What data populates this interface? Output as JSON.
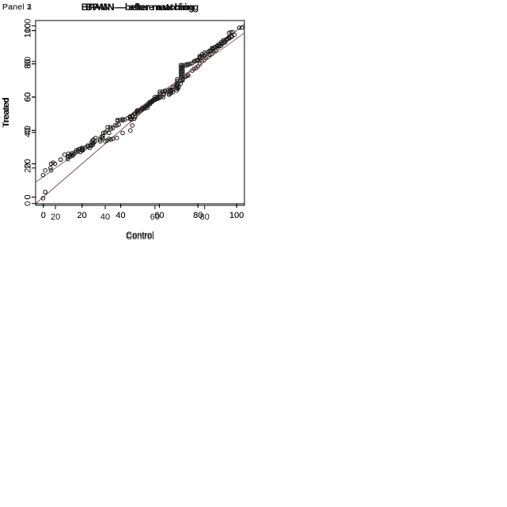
{
  "figure": {
    "background": "#ffffff",
    "point_color": "#1a1a1a",
    "reference_line_color": "#966058",
    "axis_color": "#000000",
    "text_color": "#111111"
  },
  "chart_data": [
    {
      "type": "scatter",
      "panel_label": "Panel 1",
      "title": "BPAIN — before matching",
      "xlabel": "Control",
      "ylabel": "Treated",
      "xlim": [
        -4,
        104
      ],
      "ylim": [
        -4,
        106
      ],
      "xticks": [
        0,
        20,
        40,
        60,
        80,
        100
      ],
      "yticks": [
        0,
        20,
        40,
        60,
        80,
        100
      ],
      "grid": false,
      "legend": null,
      "reference_line": "identity",
      "points": [
        [
          1,
          3
        ],
        [
          4,
          16
        ],
        [
          6,
          20
        ],
        [
          9,
          22.5
        ],
        [
          11,
          25.5
        ],
        [
          13,
          26
        ],
        [
          15,
          26.5
        ],
        [
          17,
          28
        ],
        [
          18,
          28.5
        ],
        [
          19,
          29
        ],
        [
          20,
          28.5
        ],
        [
          20,
          29.5
        ],
        [
          23,
          31
        ],
        [
          25,
          33
        ],
        [
          25.5,
          34
        ],
        [
          26,
          34.5
        ],
        [
          27,
          35.5
        ],
        [
          30,
          36
        ],
        [
          31,
          38.5
        ],
        [
          33,
          40
        ],
        [
          34,
          38.5
        ],
        [
          35,
          41
        ],
        [
          36,
          41.5
        ],
        [
          38,
          43
        ],
        [
          39,
          43.5
        ],
        [
          41,
          46
        ],
        [
          42,
          46.5
        ],
        [
          45,
          47
        ],
        [
          46,
          48.5
        ],
        [
          47,
          50
        ],
        [
          48,
          51
        ],
        [
          48.5,
          52
        ],
        [
          50,
          52.5
        ],
        [
          51,
          53
        ],
        [
          52,
          54
        ],
        [
          53,
          54.5
        ],
        [
          54,
          56
        ],
        [
          55,
          57
        ],
        [
          56,
          57.5
        ],
        [
          57,
          58.5
        ],
        [
          58,
          59
        ],
        [
          59,
          59.5
        ],
        [
          60,
          59.5
        ],
        [
          61,
          60.5
        ],
        [
          62,
          61.5
        ],
        [
          62.5,
          62
        ],
        [
          63,
          63.5
        ],
        [
          64,
          64
        ],
        [
          65,
          63.5
        ],
        [
          66,
          64
        ],
        [
          67,
          66
        ],
        [
          68,
          66.5
        ],
        [
          69,
          67
        ],
        [
          70,
          68.5
        ],
        [
          71,
          70
        ],
        [
          72,
          70.5
        ],
        [
          73,
          72
        ],
        [
          74,
          72.5
        ],
        [
          74.5,
          73.5
        ],
        [
          75,
          73
        ],
        [
          77,
          76
        ],
        [
          78,
          77
        ],
        [
          79,
          77.5
        ],
        [
          80,
          78.5
        ],
        [
          81,
          80
        ],
        [
          82,
          81.5
        ],
        [
          83,
          82
        ],
        [
          84,
          83.5
        ],
        [
          85,
          84
        ],
        [
          86,
          85.5
        ],
        [
          87,
          86
        ],
        [
          88,
          87.5
        ],
        [
          89,
          88
        ],
        [
          90,
          89.5
        ],
        [
          91,
          90.5
        ],
        [
          92,
          91
        ],
        [
          93,
          92.5
        ],
        [
          94,
          93
        ],
        [
          95,
          94.5
        ],
        [
          96,
          95.5
        ],
        [
          97,
          96.5
        ],
        [
          98,
          99
        ]
      ]
    },
    {
      "type": "scatter",
      "panel_label": "Panel 2",
      "title": "BPAIN — after matching",
      "xlabel": "Control",
      "ylabel": "Treated",
      "xlim": [
        -4,
        104
      ],
      "ylim": [
        -4,
        106
      ],
      "xticks": [
        0,
        20,
        40,
        60,
        80,
        100
      ],
      "yticks": [
        0,
        20,
        40,
        60,
        80,
        100
      ],
      "grid": false,
      "legend": null,
      "reference_line": "identity",
      "points": [
        [
          1,
          3
        ],
        [
          1,
          16
        ],
        [
          4,
          20
        ],
        [
          9,
          22.5
        ],
        [
          13,
          24.5
        ],
        [
          15,
          25.5
        ],
        [
          16,
          26
        ],
        [
          17,
          27
        ],
        [
          18,
          27.5
        ],
        [
          20,
          28
        ],
        [
          24,
          29.5
        ],
        [
          25,
          31
        ],
        [
          26,
          32.5
        ],
        [
          32,
          33.5
        ],
        [
          33,
          34
        ],
        [
          34,
          35
        ],
        [
          35,
          34.5
        ],
        [
          36,
          35
        ],
        [
          38,
          35.5
        ],
        [
          41,
          38.5
        ],
        [
          45,
          40
        ],
        [
          46,
          43
        ],
        [
          45.5,
          46.5
        ],
        [
          47,
          47
        ],
        [
          47.5,
          48
        ],
        [
          48,
          51
        ],
        [
          49,
          52
        ],
        [
          50,
          52.5
        ],
        [
          51,
          53.5
        ],
        [
          52,
          54
        ],
        [
          52.5,
          54.5
        ],
        [
          53,
          55
        ],
        [
          54,
          55.5
        ],
        [
          55,
          56
        ],
        [
          56,
          57
        ],
        [
          56.5,
          57.5
        ],
        [
          57,
          58
        ],
        [
          58,
          58.5
        ],
        [
          59,
          59
        ],
        [
          60,
          60
        ],
        [
          62,
          60
        ],
        [
          65,
          61.5
        ],
        [
          65.5,
          62
        ],
        [
          66,
          62.5
        ],
        [
          66,
          63.5
        ],
        [
          67,
          63
        ],
        [
          69,
          64
        ],
        [
          69.5,
          65
        ],
        [
          70,
          66
        ],
        [
          71,
          68
        ],
        [
          72,
          70
        ],
        [
          72,
          71
        ],
        [
          72,
          72
        ],
        [
          72,
          73
        ],
        [
          72,
          74
        ],
        [
          72,
          75
        ],
        [
          72,
          76
        ],
        [
          72,
          77
        ],
        [
          72,
          78
        ],
        [
          72,
          79
        ],
        [
          74,
          79
        ],
        [
          75,
          79.5
        ],
        [
          76,
          80
        ],
        [
          78,
          81.5
        ],
        [
          79,
          82
        ],
        [
          80,
          82.5
        ],
        [
          81,
          84
        ],
        [
          82,
          84.5
        ],
        [
          83,
          85
        ],
        [
          84,
          86
        ],
        [
          85,
          87
        ],
        [
          86,
          87.5
        ],
        [
          87,
          88
        ],
        [
          88,
          89
        ],
        [
          89,
          90
        ],
        [
          90,
          91
        ],
        [
          91,
          92
        ],
        [
          92,
          93
        ],
        [
          93,
          94
        ],
        [
          95,
          95
        ],
        [
          96,
          96
        ],
        [
          96,
          98.5
        ],
        [
          97,
          99
        ]
      ]
    },
    {
      "type": "scatter",
      "panel_label": "Panel 3",
      "title": "BPAIN — after matching",
      "xlabel": "Control",
      "ylabel": "Treated",
      "xlim": [
        12,
        96
      ],
      "ylim": [
        -1,
        103
      ],
      "xticks": [
        20,
        40,
        60,
        80
      ],
      "yticks": [
        0,
        20,
        40,
        60,
        80,
        100
      ],
      "grid": false,
      "legend": null,
      "reference_line": "identity",
      "points": [
        [
          15,
          3
        ],
        [
          15,
          16
        ],
        [
          18,
          20
        ],
        [
          19,
          23
        ],
        [
          25,
          25
        ],
        [
          25,
          26
        ],
        [
          26,
          26.5
        ],
        [
          26,
          27.5
        ],
        [
          27,
          27
        ],
        [
          30,
          29
        ],
        [
          31,
          30
        ],
        [
          31,
          31
        ],
        [
          32,
          31.5
        ],
        [
          33,
          32
        ],
        [
          34,
          32.5
        ],
        [
          35,
          33
        ],
        [
          35,
          34
        ],
        [
          36,
          35
        ],
        [
          38,
          35
        ],
        [
          38,
          36
        ],
        [
          39,
          37
        ],
        [
          39,
          38
        ],
        [
          40,
          40
        ],
        [
          41,
          43
        ],
        [
          42,
          43
        ],
        [
          44,
          44
        ],
        [
          45,
          46.5
        ],
        [
          45,
          47
        ],
        [
          46,
          47
        ],
        [
          47,
          47.5
        ],
        [
          49,
          48
        ],
        [
          50,
          48.5
        ],
        [
          50,
          49
        ],
        [
          51,
          49.5
        ],
        [
          52,
          50.5
        ],
        [
          53,
          51
        ],
        [
          53,
          52
        ],
        [
          54,
          52
        ],
        [
          55,
          53
        ],
        [
          56,
          53.5
        ],
        [
          57,
          54
        ],
        [
          57,
          55
        ],
        [
          58,
          56
        ],
        [
          58,
          57
        ],
        [
          59,
          58
        ],
        [
          60,
          59
        ],
        [
          60,
          60
        ],
        [
          61,
          60
        ],
        [
          62,
          62
        ],
        [
          62,
          63
        ],
        [
          63,
          63
        ],
        [
          64,
          63.5
        ],
        [
          66,
          64
        ],
        [
          67,
          64
        ],
        [
          69,
          65
        ],
        [
          69,
          66
        ],
        [
          69,
          67
        ],
        [
          69,
          68
        ],
        [
          69,
          69
        ],
        [
          69,
          70
        ],
        [
          70.5,
          71
        ],
        [
          70.5,
          72
        ],
        [
          70.5,
          73
        ],
        [
          70.5,
          74
        ],
        [
          70.5,
          75
        ],
        [
          70.5,
          76
        ],
        [
          70.5,
          77
        ],
        [
          70.5,
          78
        ],
        [
          72,
          78
        ],
        [
          73,
          78.5
        ],
        [
          75,
          79
        ],
        [
          76,
          80
        ],
        [
          77,
          80.5
        ],
        [
          78,
          82
        ],
        [
          78,
          83
        ],
        [
          79,
          84
        ],
        [
          80,
          85
        ],
        [
          82,
          86
        ],
        [
          83,
          87
        ],
        [
          83,
          87.5
        ],
        [
          84,
          88
        ],
        [
          85,
          88.5
        ],
        [
          86,
          89
        ],
        [
          87,
          90
        ],
        [
          88,
          91
        ],
        [
          88,
          92
        ],
        [
          89,
          92.5
        ],
        [
          90,
          93
        ],
        [
          91,
          94
        ],
        [
          92,
          95
        ],
        [
          94,
          99
        ],
        [
          95,
          99
        ]
      ]
    }
  ]
}
